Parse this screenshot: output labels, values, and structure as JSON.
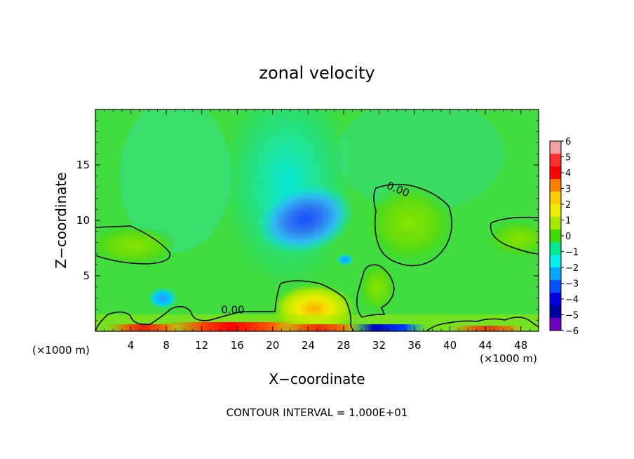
{
  "chart_data": {
    "type": "heatmap",
    "title": "zonal velocity",
    "xlabel": "X−coordinate",
    "ylabel": "Z−coordinate",
    "x_unit_label_left": "(×1000 m)",
    "x_unit_label_right": "(×1000 m)",
    "footer": "CONTOUR INTERVAL = 1.000E+01",
    "xlim": [
      0,
      50
    ],
    "ylim": [
      0,
      20
    ],
    "x_ticks": [
      "4",
      "8",
      "12",
      "16",
      "20",
      "24",
      "28",
      "32",
      "36",
      "40",
      "44",
      "48"
    ],
    "x_tick_values": [
      4,
      8,
      12,
      16,
      20,
      24,
      28,
      32,
      36,
      40,
      44,
      48
    ],
    "y_ticks": [
      "5",
      "10",
      "15"
    ],
    "y_tick_values": [
      5,
      10,
      15
    ],
    "colorbar": {
      "labels": [
        "6",
        "5",
        "4",
        "3",
        "2",
        "1",
        "0",
        "−1",
        "−2",
        "−3",
        "−4",
        "−5",
        "−6"
      ],
      "levels": [
        6,
        5,
        4,
        3,
        2,
        1,
        0,
        -1,
        -2,
        -3,
        -4,
        -5,
        -6
      ],
      "colors": [
        "#f2a0a0",
        "#ff3030",
        "#ff0000",
        "#ff8000",
        "#ffcc00",
        "#eeee00",
        "#a8e800",
        "#40d800",
        "#00e890",
        "#00eeee",
        "#00a8ff",
        "#0050ff",
        "#0000e0",
        "#0000a0",
        "#7000c0"
      ]
    },
    "contour_labels": [
      {
        "text": "0.00",
        "x": 34,
        "y": 12.5
      },
      {
        "text": "0.00",
        "x": 15.5,
        "y": 1.6
      }
    ],
    "features": [
      {
        "name": "negative core",
        "x": 24,
        "y": 10.4,
        "value": -3.5
      },
      {
        "name": "positive region",
        "x": 34.5,
        "y": 10,
        "value": 0.8
      },
      {
        "name": "positive region",
        "x": 5,
        "y": 7.8,
        "value": 0.5
      },
      {
        "name": "positive region",
        "x": 47,
        "y": 8.5,
        "value": 0.5
      },
      {
        "name": "positive region",
        "x": 23,
        "y": 2.5,
        "value": 1.5
      },
      {
        "name": "positive region",
        "x": 31.5,
        "y": 3.5,
        "value": 0.7
      },
      {
        "name": "negative region",
        "x": 7.5,
        "y": 3,
        "value": -2.5
      },
      {
        "name": "negative region",
        "x": 28,
        "y": 6.3,
        "value": -1.5
      }
    ]
  }
}
